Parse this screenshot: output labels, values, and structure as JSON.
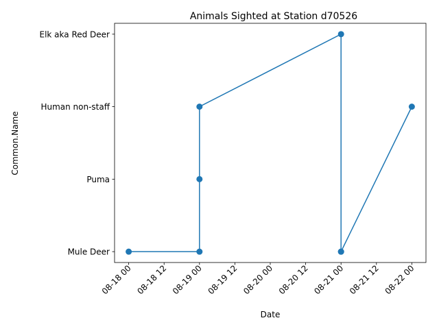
{
  "chart_data": {
    "type": "line",
    "title": "Animals Sighted at Station d70526",
    "xlabel": "Date",
    "ylabel": "Common.Name",
    "x_ticks": [
      {
        "value": 0.0,
        "label": "08-18 00"
      },
      {
        "value": 0.5,
        "label": "08-18 12"
      },
      {
        "value": 1.0,
        "label": "08-19 00"
      },
      {
        "value": 1.5,
        "label": "08-19 12"
      },
      {
        "value": 2.0,
        "label": "08-20 00"
      },
      {
        "value": 2.5,
        "label": "08-20 12"
      },
      {
        "value": 3.0,
        "label": "08-21 00"
      },
      {
        "value": 3.5,
        "label": "08-21 12"
      },
      {
        "value": 4.0,
        "label": "08-22 00"
      }
    ],
    "categories": [
      "Mule Deer",
      "Puma",
      "Human non-staff",
      "Elk aka Red Deer"
    ],
    "xlim": [
      -0.2,
      4.2
    ],
    "ylim": [
      -0.15,
      3.15
    ],
    "series": [
      {
        "color": "#1f77b4",
        "points": [
          {
            "x": 0.0,
            "y": "Mule Deer"
          },
          {
            "x": 1.0,
            "y": "Mule Deer"
          },
          {
            "x": 1.0,
            "y": "Puma"
          },
          {
            "x": 1.0,
            "y": "Human non-staff"
          },
          {
            "x": 3.0,
            "y": "Elk aka Red Deer"
          },
          {
            "x": 3.0,
            "y": "Mule Deer"
          },
          {
            "x": 3.0,
            "y": "Mule Deer"
          },
          {
            "x": 4.0,
            "y": "Human non-staff"
          }
        ]
      }
    ]
  }
}
